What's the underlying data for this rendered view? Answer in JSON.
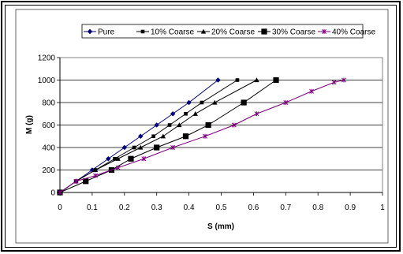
{
  "chart_data": {
    "type": "line",
    "xlabel": "S (mm)",
    "ylabel": "M  (g)",
    "xlim": [
      0,
      1
    ],
    "ylim": [
      0,
      1200
    ],
    "x_ticks": [
      "0",
      "0.1",
      "0.2",
      "0.3",
      "0.4",
      "0.5",
      "0.6",
      "0.7",
      "0.8",
      "0.9",
      "1"
    ],
    "y_ticks": [
      "0",
      "200",
      "400",
      "600",
      "800",
      "1000",
      "1200"
    ],
    "grid": "horizontal",
    "legend_position": "top",
    "series": [
      {
        "name": "Pure",
        "color": "#000080",
        "marker": "diamond",
        "x": [
          0,
          0.05,
          0.1,
          0.15,
          0.2,
          0.25,
          0.3,
          0.35,
          0.4,
          0.49
        ],
        "y": [
          0,
          100,
          200,
          300,
          400,
          500,
          600,
          700,
          800,
          1000
        ]
      },
      {
        "name": "10% Coarse",
        "color": "#000000",
        "marker": "square",
        "x": [
          0,
          0.05,
          0.11,
          0.17,
          0.23,
          0.29,
          0.34,
          0.39,
          0.44,
          0.55
        ],
        "y": [
          0,
          100,
          200,
          300,
          400,
          500,
          600,
          700,
          800,
          1000
        ]
      },
      {
        "name": "20% Coarse",
        "color": "#000000",
        "marker": "triangle",
        "x": [
          0,
          0.05,
          0.11,
          0.18,
          0.25,
          0.32,
          0.37,
          0.42,
          0.48,
          0.61
        ],
        "y": [
          0,
          100,
          200,
          300,
          400,
          500,
          600,
          700,
          800,
          1000
        ]
      },
      {
        "name": "30% Coarse",
        "color": "#000000",
        "marker": "big-square",
        "x": [
          0,
          0.08,
          0.16,
          0.22,
          0.3,
          0.39,
          0.46,
          0.57,
          0.67
        ],
        "y": [
          0,
          100,
          200,
          300,
          400,
          500,
          600,
          800,
          1000
        ]
      },
      {
        "name": "40% Coarse",
        "color": "#800080",
        "marker": "star",
        "x": [
          0,
          0.05,
          0.11,
          0.18,
          0.26,
          0.35,
          0.45,
          0.54,
          0.61,
          0.7,
          0.78,
          0.85,
          0.88
        ],
        "y": [
          0,
          100,
          150,
          220,
          300,
          400,
          500,
          600,
          700,
          800,
          900,
          980,
          1000
        ]
      }
    ]
  }
}
